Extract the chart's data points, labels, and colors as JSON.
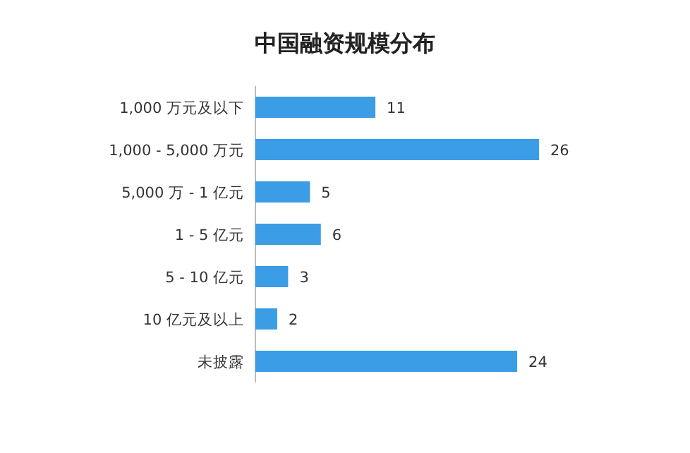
{
  "chart_data": {
    "type": "bar",
    "orientation": "horizontal",
    "title": "中国融资规模分布",
    "categories": [
      "1,000 万元及以下",
      "1,000 - 5,000 万元",
      "5,000 万 - 1 亿元",
      "1 - 5 亿元",
      "5 - 10 亿元",
      "10 亿元及以上",
      "未披露"
    ],
    "values": [
      11,
      26,
      5,
      6,
      3,
      2,
      24
    ],
    "color": "#3a9de6",
    "data_labels": true
  }
}
